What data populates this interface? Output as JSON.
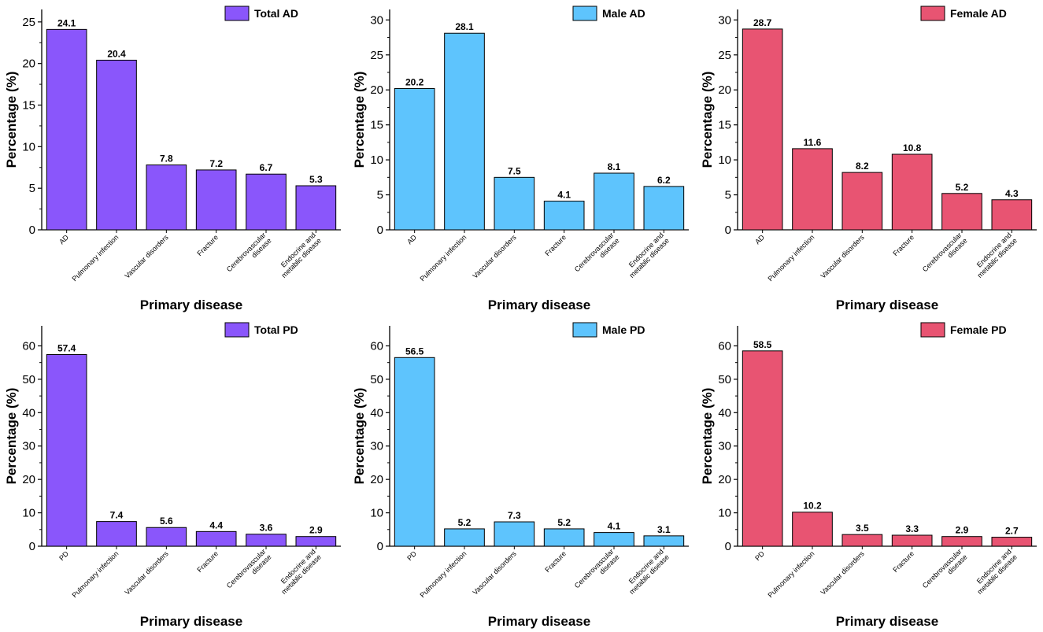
{
  "chart_data": [
    {
      "type": "bar",
      "legend": "Total AD",
      "legend_position": "top-right",
      "color": "#8a56fb",
      "categories": [
        [
          "AD"
        ],
        [
          "Pulmonary infection"
        ],
        [
          "Vascular disorders"
        ],
        [
          "Fracture"
        ],
        [
          "Cerebrovascular",
          "disease"
        ],
        [
          "Endocrine and",
          "metablic disease"
        ]
      ],
      "values": [
        24.1,
        20.4,
        7.8,
        7.2,
        6.7,
        5.3
      ],
      "ylim": [
        0,
        26.5
      ],
      "yticks": [
        0,
        5,
        10,
        15,
        20,
        25
      ],
      "xlabel": "Primary disease",
      "ylabel": "Percentage (%)"
    },
    {
      "type": "bar",
      "legend": "Male AD",
      "legend_position": "top-right",
      "color": "#5ec4fd",
      "categories": [
        [
          "AD"
        ],
        [
          "Pulmonary infection"
        ],
        [
          "Vascular disorders"
        ],
        [
          "Fracture"
        ],
        [
          "Cerebrovascular",
          "disease"
        ],
        [
          "Endocrine and",
          "metablic disease"
        ]
      ],
      "values": [
        20.2,
        28.1,
        7.5,
        4.1,
        8.1,
        6.2
      ],
      "ylim": [
        0,
        31.5
      ],
      "yticks": [
        0,
        5,
        10,
        15,
        20,
        25,
        30
      ],
      "xlabel": "Primary disease",
      "ylabel": "Percentage (%)"
    },
    {
      "type": "bar",
      "legend": "Female AD",
      "legend_position": "top-right",
      "color": "#e85472",
      "categories": [
        [
          "AD"
        ],
        [
          "Pulmonary infection"
        ],
        [
          "Vascular disorders"
        ],
        [
          "Fracture"
        ],
        [
          "Cerebrovascular",
          "disease"
        ],
        [
          "Endocrine and",
          "metablic disease"
        ]
      ],
      "values": [
        28.7,
        11.6,
        8.2,
        10.8,
        5.2,
        4.3
      ],
      "ylim": [
        0,
        31.5
      ],
      "yticks": [
        0,
        5,
        10,
        15,
        20,
        25,
        30
      ],
      "xlabel": "Primary disease",
      "ylabel": "Percentage (%)"
    },
    {
      "type": "bar",
      "legend": "Total PD",
      "legend_position": "top-right",
      "color": "#8a56fb",
      "categories": [
        [
          "PD"
        ],
        [
          "Pulmonary infection"
        ],
        [
          "Vascular disorders"
        ],
        [
          "Fracture"
        ],
        [
          "Cerebrovascular",
          "disease"
        ],
        [
          "Endocrine and",
          "metablic disease"
        ]
      ],
      "values": [
        57.4,
        7.4,
        5.6,
        4.4,
        3.6,
        2.9
      ],
      "ylim": [
        0,
        66
      ],
      "yticks": [
        0,
        10,
        20,
        30,
        40,
        50,
        60
      ],
      "xlabel": "Primary disease",
      "ylabel": "Percentage (%)"
    },
    {
      "type": "bar",
      "legend": "Male PD",
      "legend_position": "top-right",
      "color": "#5ec4fd",
      "categories": [
        [
          "PD"
        ],
        [
          "Pulmonary infection"
        ],
        [
          "Vascular disorders"
        ],
        [
          "Fracture"
        ],
        [
          "Cerebrovascular",
          "disease"
        ],
        [
          "Endocrine and",
          "metablic disease"
        ]
      ],
      "values": [
        56.5,
        5.2,
        7.3,
        5.2,
        4.1,
        3.1
      ],
      "ylim": [
        0,
        66
      ],
      "yticks": [
        0,
        10,
        20,
        30,
        40,
        50,
        60
      ],
      "xlabel": "Primary disease",
      "ylabel": "Percentage (%)"
    },
    {
      "type": "bar",
      "legend": "Female PD",
      "legend_position": "top-right",
      "color": "#e85472",
      "categories": [
        [
          "PD"
        ],
        [
          "Pulmonary infection"
        ],
        [
          "Vascular disorders"
        ],
        [
          "Fracture"
        ],
        [
          "Cerebrovascular",
          "disease"
        ],
        [
          "Endocrine and",
          "metablic disease"
        ]
      ],
      "values": [
        58.5,
        10.2,
        3.5,
        3.3,
        2.9,
        2.7
      ],
      "ylim": [
        0,
        66
      ],
      "yticks": [
        0,
        10,
        20,
        30,
        40,
        50,
        60
      ],
      "xlabel": "Primary disease",
      "ylabel": "Percentage (%)"
    }
  ]
}
